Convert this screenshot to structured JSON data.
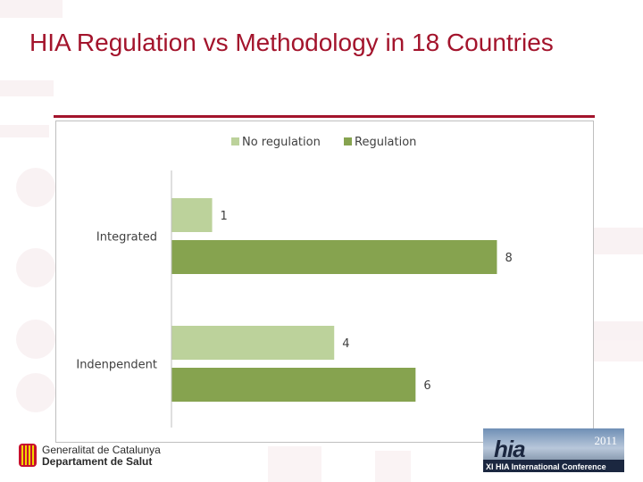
{
  "slide": {
    "title": "HIA Regulation vs Methodology in 18 Countries"
  },
  "footer": {
    "org_line1": "Generalitat de Catalunya",
    "org_line2": "Departament de Salut",
    "conference_logo_text": "hia",
    "conference_year": "2011",
    "conference_label": "XI HIA International Conference"
  },
  "colors": {
    "title": "#a3142c",
    "no_regulation": "#bcd29b",
    "regulation": "#86a34f"
  },
  "chart_data": {
    "type": "bar",
    "orientation": "horizontal",
    "title": "",
    "xlabel": "",
    "ylabel": "",
    "categories": [
      "Integrated",
      "Indenpendent"
    ],
    "series": [
      {
        "name": "No regulation",
        "values": [
          1,
          4
        ]
      },
      {
        "name": "Regulation",
        "values": [
          8,
          6
        ]
      }
    ],
    "xlim": [
      0,
      9
    ],
    "legend": "top",
    "grid": false,
    "data_labels": true
  }
}
